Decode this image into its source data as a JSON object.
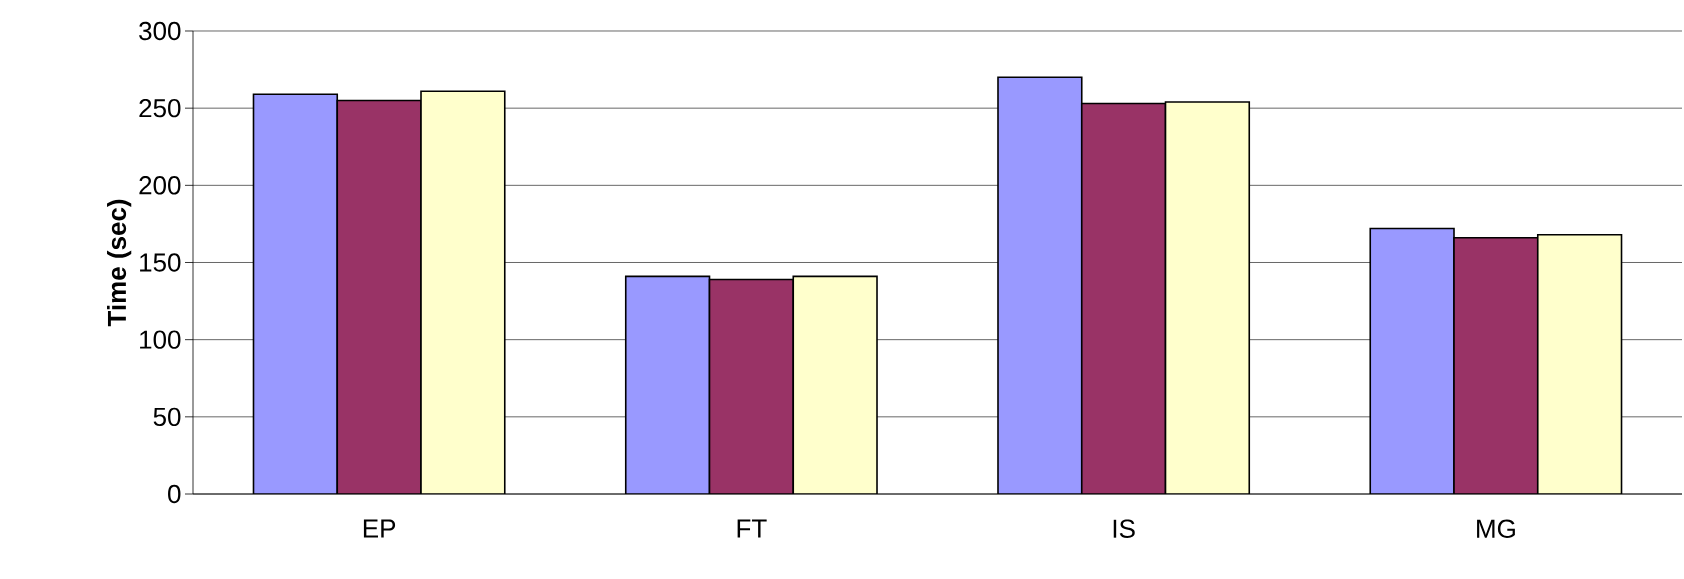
{
  "chart_data": {
    "type": "bar",
    "ylabel": "**Time (sec)**",
    "categories": [
      "EP",
      "FT",
      "IS",
      "MG"
    ],
    "series": [
      {
        "color": "#9999ff",
        "values": [
          259,
          141,
          270,
          172
        ]
      },
      {
        "color": "#993366",
        "values": [
          255,
          139,
          253,
          166
        ]
      },
      {
        "color": "#ffffcc",
        "values": [
          261,
          141,
          254,
          168
        ]
      }
    ],
    "ylim": [
      0,
      300
    ],
    "yticks": [
      0,
      50,
      100,
      150,
      200,
      250,
      300
    ],
    "grid": "y"
  }
}
